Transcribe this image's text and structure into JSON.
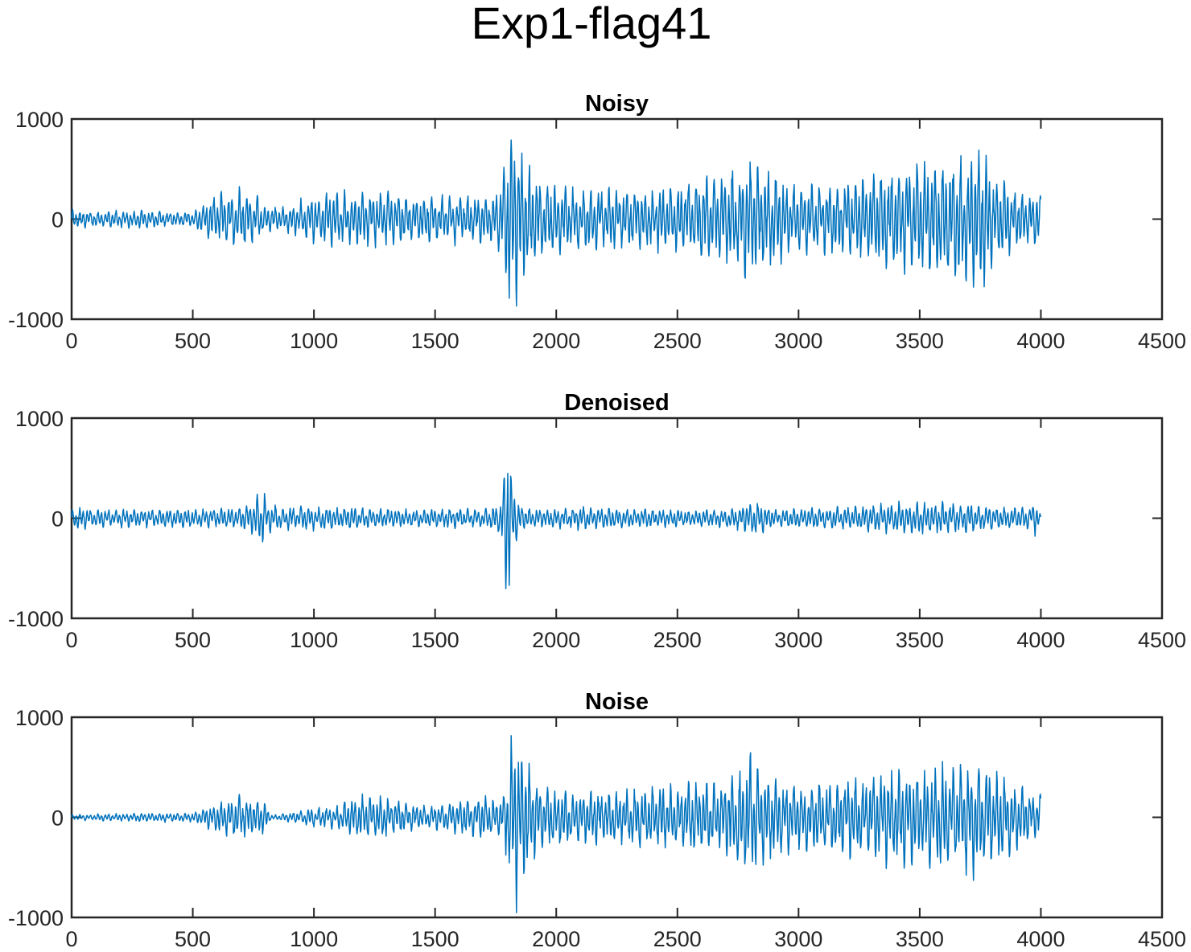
{
  "figure_title": "Exp1-flag41",
  "colors": {
    "line": "#0072BD",
    "axes": "#262626",
    "background": "#ffffff"
  },
  "chart_data": [
    {
      "type": "line",
      "title": "Noisy",
      "xlabel": "",
      "ylabel": "",
      "xlim": [
        0,
        4500
      ],
      "ylim": [
        -1000,
        1000
      ],
      "xticks": [
        "0",
        "500",
        "1000",
        "1500",
        "2000",
        "2500",
        "3000",
        "3500",
        "4000",
        "4500"
      ],
      "yticks": [
        "1000",
        "0",
        "-1000"
      ],
      "grid": false,
      "series": [
        {
          "x": [
            0,
            100,
            200,
            300,
            400,
            500,
            550,
            600,
            650,
            700,
            750,
            800,
            900,
            1000,
            1100,
            1200,
            1300,
            1400,
            1500,
            1600,
            1700,
            1760,
            1780,
            1790,
            1800,
            1810,
            1820,
            1840,
            1860,
            1900,
            2000,
            2100,
            2200,
            2300,
            2400,
            2500,
            2600,
            2700,
            2780,
            2800,
            2820,
            2900,
            3000,
            3100,
            3200,
            3300,
            3400,
            3500,
            3600,
            3700,
            3740,
            3760,
            3780,
            3800,
            3900,
            3960,
            3980,
            4000
          ],
          "y_envelope": [
            80,
            60,
            70,
            80,
            60,
            60,
            150,
            200,
            240,
            260,
            240,
            100,
            120,
            200,
            230,
            220,
            240,
            180,
            200,
            200,
            200,
            250,
            380,
            880,
            920,
            850,
            780,
            650,
            550,
            400,
            300,
            250,
            260,
            260,
            260,
            300,
            350,
            400,
            500,
            520,
            480,
            380,
            300,
            300,
            320,
            400,
            450,
            480,
            500,
            550,
            600,
            580,
            560,
            400,
            250,
            200,
            250,
            200
          ]
        }
      ]
    },
    {
      "type": "line",
      "title": "Denoised",
      "xlabel": "",
      "ylabel": "",
      "xlim": [
        0,
        4500
      ],
      "ylim": [
        -1000,
        1000
      ],
      "xticks": [
        "0",
        "500",
        "1000",
        "1500",
        "2000",
        "2500",
        "3000",
        "3500",
        "4000",
        "4500"
      ],
      "yticks": [
        "1000",
        "0",
        "-1000"
      ],
      "grid": false,
      "series": [
        {
          "x": [
            0,
            100,
            200,
            300,
            400,
            500,
            600,
            700,
            750,
            780,
            800,
            820,
            900,
            1000,
            1100,
            1200,
            1300,
            1400,
            1500,
            1600,
            1700,
            1760,
            1780,
            1790,
            1800,
            1810,
            1830,
            1860,
            1900,
            2000,
            2100,
            2200,
            2300,
            2400,
            2500,
            2600,
            2700,
            2780,
            2800,
            2820,
            2900,
            3000,
            3100,
            3200,
            3300,
            3400,
            3500,
            3600,
            3700,
            3800,
            3900,
            3960,
            3980,
            4000
          ],
          "y_envelope": [
            90,
            80,
            80,
            80,
            80,
            80,
            80,
            90,
            150,
            220,
            200,
            120,
            100,
            100,
            90,
            90,
            80,
            70,
            80,
            80,
            80,
            120,
            300,
            650,
            800,
            500,
            250,
            120,
            80,
            80,
            100,
            90,
            80,
            80,
            70,
            70,
            80,
            120,
            160,
            140,
            80,
            80,
            90,
            100,
            120,
            130,
            140,
            130,
            120,
            100,
            90,
            100,
            150,
            20
          ]
        }
      ]
    },
    {
      "type": "line",
      "title": "Noise",
      "xlabel": "",
      "ylabel": "",
      "xlim": [
        0,
        4500
      ],
      "ylim": [
        -1000,
        1000
      ],
      "xticks": [
        "0",
        "500",
        "1000",
        "1500",
        "2000",
        "2500",
        "3000",
        "3500",
        "4000",
        "4500"
      ],
      "yticks": [
        "1000",
        "0",
        "-1000"
      ],
      "grid": false,
      "series": [
        {
          "x": [
            0,
            100,
            200,
            300,
            400,
            500,
            550,
            600,
            650,
            700,
            750,
            800,
            820,
            900,
            1000,
            1100,
            1150,
            1200,
            1250,
            1300,
            1400,
            1500,
            1600,
            1700,
            1780,
            1800,
            1820,
            1840,
            1860,
            1900,
            2000,
            2100,
            2200,
            2300,
            2400,
            2500,
            2600,
            2700,
            2780,
            2800,
            2820,
            2900,
            3000,
            3100,
            3200,
            3300,
            3400,
            3500,
            3600,
            3700,
            3740,
            3760,
            3780,
            3800,
            3900,
            3960,
            3980,
            4000
          ],
          "y_envelope": [
            20,
            30,
            30,
            40,
            40,
            40,
            80,
            120,
            160,
            180,
            170,
            150,
            20,
            40,
            80,
            100,
            180,
            180,
            180,
            170,
            120,
            100,
            140,
            180,
            150,
            550,
            700,
            800,
            650,
            350,
            250,
            230,
            220,
            230,
            260,
            280,
            300,
            330,
            450,
            550,
            450,
            330,
            280,
            300,
            330,
            360,
            400,
            420,
            450,
            480,
            520,
            500,
            450,
            400,
            280,
            200,
            180,
            200
          ]
        }
      ]
    }
  ]
}
